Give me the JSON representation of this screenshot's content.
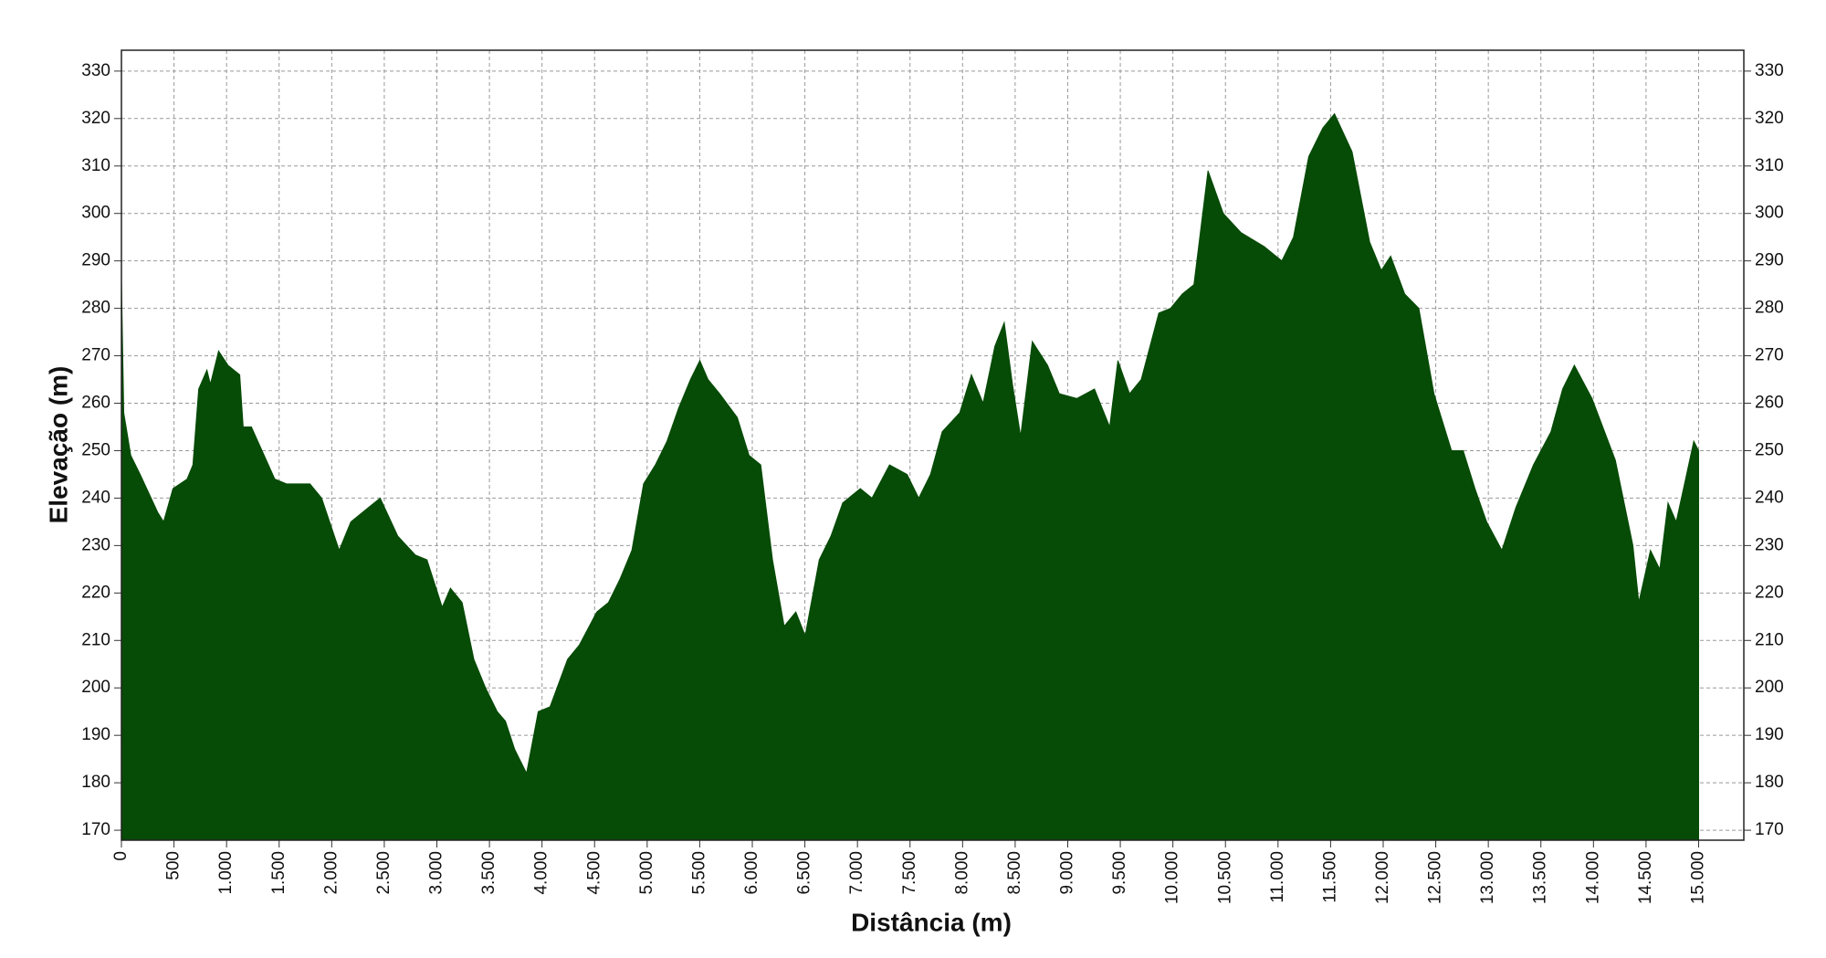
{
  "chart_data": {
    "type": "area",
    "xlabel": "Distância (m)",
    "ylabel": "Elevação (m)",
    "color": "#064b06",
    "x": [
      0,
      22,
      89,
      178,
      345,
      401,
      490,
      624,
      680,
      735,
      813,
      846,
      924,
      1013,
      1125,
      1158,
      1236,
      1459,
      1570,
      1793,
      1904,
      2071,
      2182,
      2349,
      2461,
      2628,
      2795,
      2906,
      3051,
      3129,
      3240,
      3352,
      3463,
      3574,
      3652,
      3741,
      3853,
      3964,
      4076,
      4243,
      4354,
      4521,
      4632,
      4743,
      4855,
      4966,
      5078,
      5189,
      5300,
      5412,
      5501,
      5579,
      5690,
      5857,
      5969,
      6080,
      6192,
      6303,
      6414,
      6503,
      6637,
      6748,
      6860,
      7027,
      7138,
      7305,
      7472,
      7583,
      7695,
      7806,
      7973,
      8084,
      8195,
      8307,
      8396,
      8474,
      8552,
      8663,
      8808,
      8920,
      9087,
      9254,
      9399,
      9477,
      9588,
      9699,
      9866,
      9978,
      10089,
      10200,
      10334,
      10479,
      10646,
      10869,
      11036,
      11147,
      11292,
      11426,
      11537,
      11704,
      11871,
      11982,
      12071,
      12205,
      12339,
      12483,
      12650,
      12761,
      12873,
      12984,
      13129,
      13262,
      13429,
      13596,
      13707,
      13818,
      13986,
      14208,
      14375,
      14431,
      14542,
      14631,
      14709,
      14787,
      14876,
      14954,
      15000
    ],
    "values": [
      286,
      258,
      249,
      245,
      237,
      235,
      242,
      244,
      247,
      263,
      267,
      264,
      271,
      268,
      266,
      255,
      255,
      244,
      243,
      243,
      240,
      229,
      235,
      238,
      240,
      232,
      228,
      227,
      217,
      221,
      218,
      206,
      200,
      195,
      193,
      187,
      182,
      195,
      196,
      206,
      209,
      216,
      218,
      223,
      229,
      243,
      247,
      252,
      259,
      265,
      269,
      265,
      262,
      257,
      249,
      247,
      227,
      213,
      216,
      211,
      227,
      232,
      239,
      242,
      240,
      247,
      245,
      240,
      245,
      254,
      258,
      266,
      260,
      272,
      277,
      264,
      253,
      273,
      268,
      262,
      261,
      263,
      255,
      269,
      262,
      265,
      279,
      280,
      283,
      285,
      309,
      300,
      296,
      293,
      290,
      295,
      312,
      318,
      321,
      313,
      294,
      288,
      291,
      283,
      280,
      262,
      250,
      250,
      242,
      235,
      229,
      238,
      247,
      254,
      263,
      268,
      261,
      248,
      230,
      218,
      229,
      225,
      239,
      235,
      244,
      252,
      250
    ],
    "xlim": [
      0,
      15430
    ],
    "ylim": [
      167.9,
      334.4
    ],
    "xticks": [
      0,
      500,
      {
        "value": 1000,
        "label": "1.000"
      },
      {
        "value": 1500,
        "label": "1.500"
      },
      {
        "value": 2000,
        "label": "2.000"
      },
      {
        "value": 2500,
        "label": "2.500"
      },
      {
        "value": 3000,
        "label": "3.000"
      },
      {
        "value": 3500,
        "label": "3.500"
      },
      {
        "value": 4000,
        "label": "4.000"
      },
      {
        "value": 4500,
        "label": "4.500"
      },
      {
        "value": 5000,
        "label": "5.000"
      },
      {
        "value": 5500,
        "label": "5.500"
      },
      {
        "value": 6000,
        "label": "6.000"
      },
      {
        "value": 6500,
        "label": "6.500"
      },
      {
        "value": 7000,
        "label": "7.000"
      },
      {
        "value": 7500,
        "label": "7.500"
      },
      {
        "value": 8000,
        "label": "8.000"
      },
      {
        "value": 8500,
        "label": "8.500"
      },
      {
        "value": 9000,
        "label": "9.000"
      },
      {
        "value": 9500,
        "label": "9.500"
      },
      {
        "value": 10000,
        "label": "10.000"
      },
      {
        "value": 10500,
        "label": "10.500"
      },
      {
        "value": 11000,
        "label": "11.000"
      },
      {
        "value": 11500,
        "label": "11.500"
      },
      {
        "value": 12000,
        "label": "12.000"
      },
      {
        "value": 12500,
        "label": "12.500"
      },
      {
        "value": 13000,
        "label": "13.000"
      },
      {
        "value": 13500,
        "label": "13.500"
      },
      {
        "value": 14000,
        "label": "14.000"
      },
      {
        "value": 14500,
        "label": "14.500"
      },
      {
        "value": 15000,
        "label": "15.000"
      }
    ],
    "yticks": [
      170,
      180,
      190,
      200,
      210,
      220,
      230,
      240,
      250,
      260,
      270,
      280,
      290,
      300,
      310,
      320,
      330
    ],
    "grid": true
  }
}
